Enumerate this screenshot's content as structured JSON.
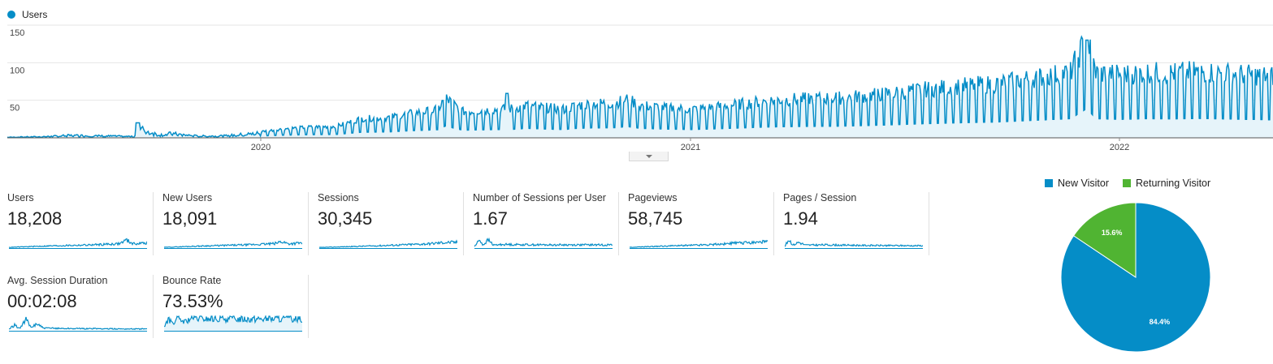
{
  "chart_data": [
    {
      "type": "area",
      "series": [
        {
          "name": "Users"
        }
      ],
      "legend": "Users",
      "y_ticks": [
        "150",
        "100",
        "50"
      ],
      "ylim": [
        0,
        150
      ],
      "x_ticks": [
        "2020",
        "2021",
        "2022"
      ],
      "x_range": [
        "2019-05",
        "2022-06"
      ],
      "grid": true,
      "color": "#058dc7",
      "fill_color": "#e6f4fa",
      "points": [
        [
          0,
          1
        ],
        [
          0.03,
          2
        ],
        [
          0.05,
          4
        ],
        [
          0.08,
          3
        ],
        [
          0.1,
          2
        ],
        [
          0.106,
          14
        ],
        [
          0.12,
          5
        ],
        [
          0.13,
          7
        ],
        [
          0.15,
          3
        ],
        [
          0.17,
          3
        ],
        [
          0.2,
          8
        ],
        [
          0.22,
          12
        ],
        [
          0.24,
          14
        ],
        [
          0.26,
          15
        ],
        [
          0.28,
          25
        ],
        [
          0.3,
          26
        ],
        [
          0.32,
          32
        ],
        [
          0.34,
          36
        ],
        [
          0.346,
          52
        ],
        [
          0.36,
          34
        ],
        [
          0.38,
          36
        ],
        [
          0.4,
          38
        ],
        [
          0.41,
          42
        ],
        [
          0.42,
          40
        ],
        [
          0.44,
          37
        ],
        [
          0.45,
          42
        ],
        [
          0.46,
          44
        ],
        [
          0.48,
          45
        ],
        [
          0.49,
          50
        ],
        [
          0.5,
          42
        ],
        [
          0.52,
          39
        ],
        [
          0.54,
          37
        ],
        [
          0.56,
          40
        ],
        [
          0.58,
          44
        ],
        [
          0.6,
          48
        ],
        [
          0.62,
          50
        ],
        [
          0.64,
          51
        ],
        [
          0.66,
          52
        ],
        [
          0.68,
          55
        ],
        [
          0.7,
          58
        ],
        [
          0.72,
          62
        ],
        [
          0.74,
          65
        ],
        [
          0.76,
          68
        ],
        [
          0.78,
          70
        ],
        [
          0.8,
          75
        ],
        [
          0.82,
          80
        ],
        [
          0.84,
          85
        ],
        [
          0.853,
          130
        ],
        [
          0.86,
          85
        ],
        [
          0.88,
          82
        ],
        [
          0.9,
          85
        ],
        [
          0.92,
          84
        ],
        [
          0.94,
          86
        ],
        [
          0.96,
          84
        ],
        [
          0.98,
          82
        ],
        [
          1.0,
          80
        ]
      ]
    },
    {
      "type": "line",
      "title": "Users",
      "value": "18,208",
      "trend": [
        [
          0,
          5
        ],
        [
          0.3,
          15
        ],
        [
          0.6,
          22
        ],
        [
          0.8,
          30
        ],
        [
          0.85,
          55
        ],
        [
          0.9,
          30
        ],
        [
          1,
          35
        ]
      ]
    },
    {
      "type": "line",
      "title": "New Users",
      "value": "18,091",
      "trend": [
        [
          0,
          5
        ],
        [
          0.3,
          15
        ],
        [
          0.6,
          22
        ],
        [
          0.8,
          30
        ],
        [
          0.85,
          45
        ],
        [
          0.9,
          30
        ],
        [
          1,
          35
        ]
      ]
    },
    {
      "type": "line",
      "title": "Sessions",
      "value": "30,345",
      "trend": [
        [
          0,
          4
        ],
        [
          0.3,
          12
        ],
        [
          0.6,
          22
        ],
        [
          0.8,
          30
        ],
        [
          0.9,
          38
        ],
        [
          1,
          40
        ]
      ]
    },
    {
      "type": "line",
      "title": "Number of Sessions per User",
      "value": "1.67",
      "trend": [
        [
          0,
          10
        ],
        [
          0.04,
          60
        ],
        [
          0.06,
          20
        ],
        [
          0.1,
          55
        ],
        [
          0.14,
          20
        ],
        [
          0.2,
          25
        ],
        [
          0.5,
          22
        ],
        [
          0.8,
          22
        ],
        [
          1,
          22
        ]
      ]
    },
    {
      "type": "line",
      "title": "Pageviews",
      "value": "58,745",
      "trend": [
        [
          0,
          5
        ],
        [
          0.3,
          15
        ],
        [
          0.6,
          25
        ],
        [
          0.8,
          35
        ],
        [
          0.9,
          40
        ],
        [
          1,
          45
        ]
      ]
    },
    {
      "type": "line",
      "title": "Pages / Session",
      "value": "1.94",
      "trend": [
        [
          0,
          10
        ],
        [
          0.03,
          60
        ],
        [
          0.06,
          20
        ],
        [
          0.1,
          40
        ],
        [
          0.15,
          20
        ],
        [
          0.3,
          22
        ],
        [
          0.6,
          18
        ],
        [
          1,
          16
        ]
      ]
    },
    {
      "type": "line",
      "title": "Avg. Session Duration",
      "value": "00:02:08",
      "trend": [
        [
          0,
          10
        ],
        [
          0.04,
          40
        ],
        [
          0.08,
          15
        ],
        [
          0.12,
          80
        ],
        [
          0.16,
          20
        ],
        [
          0.2,
          50
        ],
        [
          0.25,
          18
        ],
        [
          0.5,
          15
        ],
        [
          1,
          12
        ]
      ]
    },
    {
      "type": "area",
      "title": "Bounce Rate",
      "value": "73.53%",
      "trend": [
        [
          0,
          30
        ],
        [
          0.03,
          75
        ],
        [
          0.06,
          55
        ],
        [
          0.1,
          80
        ],
        [
          0.15,
          60
        ],
        [
          0.2,
          85
        ],
        [
          0.3,
          80
        ],
        [
          0.5,
          82
        ],
        [
          1,
          82
        ]
      ]
    },
    {
      "type": "pie",
      "slices": [
        {
          "name": "New Visitor",
          "value": 84.4,
          "label": "84.4%",
          "color": "#058dc7"
        },
        {
          "name": "Returning Visitor",
          "value": 15.6,
          "label": "15.6%",
          "color": "#50b432"
        }
      ]
    }
  ]
}
